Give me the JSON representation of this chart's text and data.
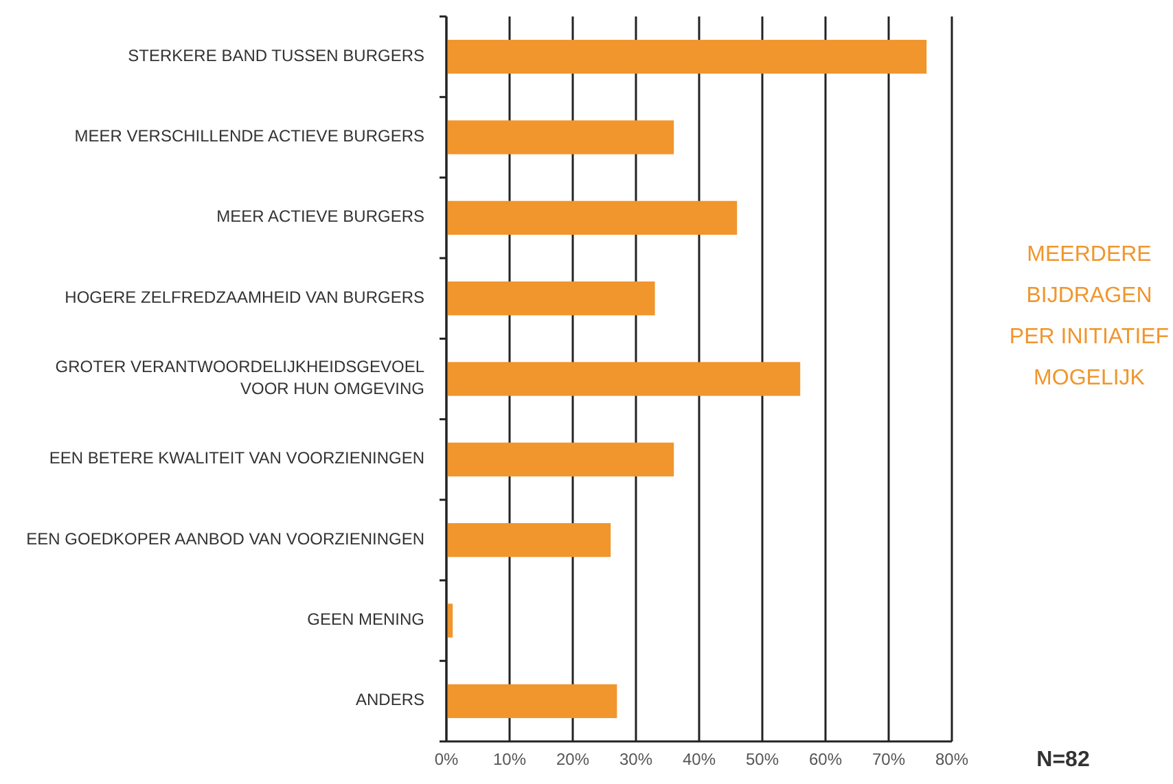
{
  "chart_data": {
    "type": "bar",
    "orientation": "horizontal",
    "categories": [
      "STERKERE BAND TUSSEN BURGERS",
      "MEER VERSCHILLENDE ACTIEVE BURGERS",
      "MEER ACTIEVE BURGERS",
      "HOGERE ZELFREDZAAMHEID VAN BURGERS",
      "GROTER VERANTWOORDELIJKHEIDSGEVOEL\nVOOR HUN OMGEVING",
      "EEN BETERE KWALITEIT VAN VOORZIENINGEN",
      "EEN GOEDKOPER AANBOD VAN VOORZIENINGEN",
      "GEEN MENING",
      "ANDERS"
    ],
    "values": [
      76,
      36,
      46,
      33,
      56,
      36,
      26,
      1,
      27
    ],
    "color": "#f0962d",
    "xlim": [
      0,
      80
    ],
    "xticks": [
      {
        "value": 0,
        "label": "0%"
      },
      {
        "value": 10,
        "label": "10%"
      },
      {
        "value": 20,
        "label": "20%"
      },
      {
        "value": 30,
        "label": "30%"
      },
      {
        "value": 40,
        "label": "40%"
      },
      {
        "value": 50,
        "label": "50%"
      },
      {
        "value": 60,
        "label": "60%"
      },
      {
        "value": 70,
        "label": "70%"
      },
      {
        "value": 80,
        "label": "80%"
      }
    ],
    "grid": "x",
    "annotations": [
      "MEERDERE\nBIJDRAGEN\nPER INITIATIEF\nMOGELIJK",
      "N=82"
    ]
  }
}
